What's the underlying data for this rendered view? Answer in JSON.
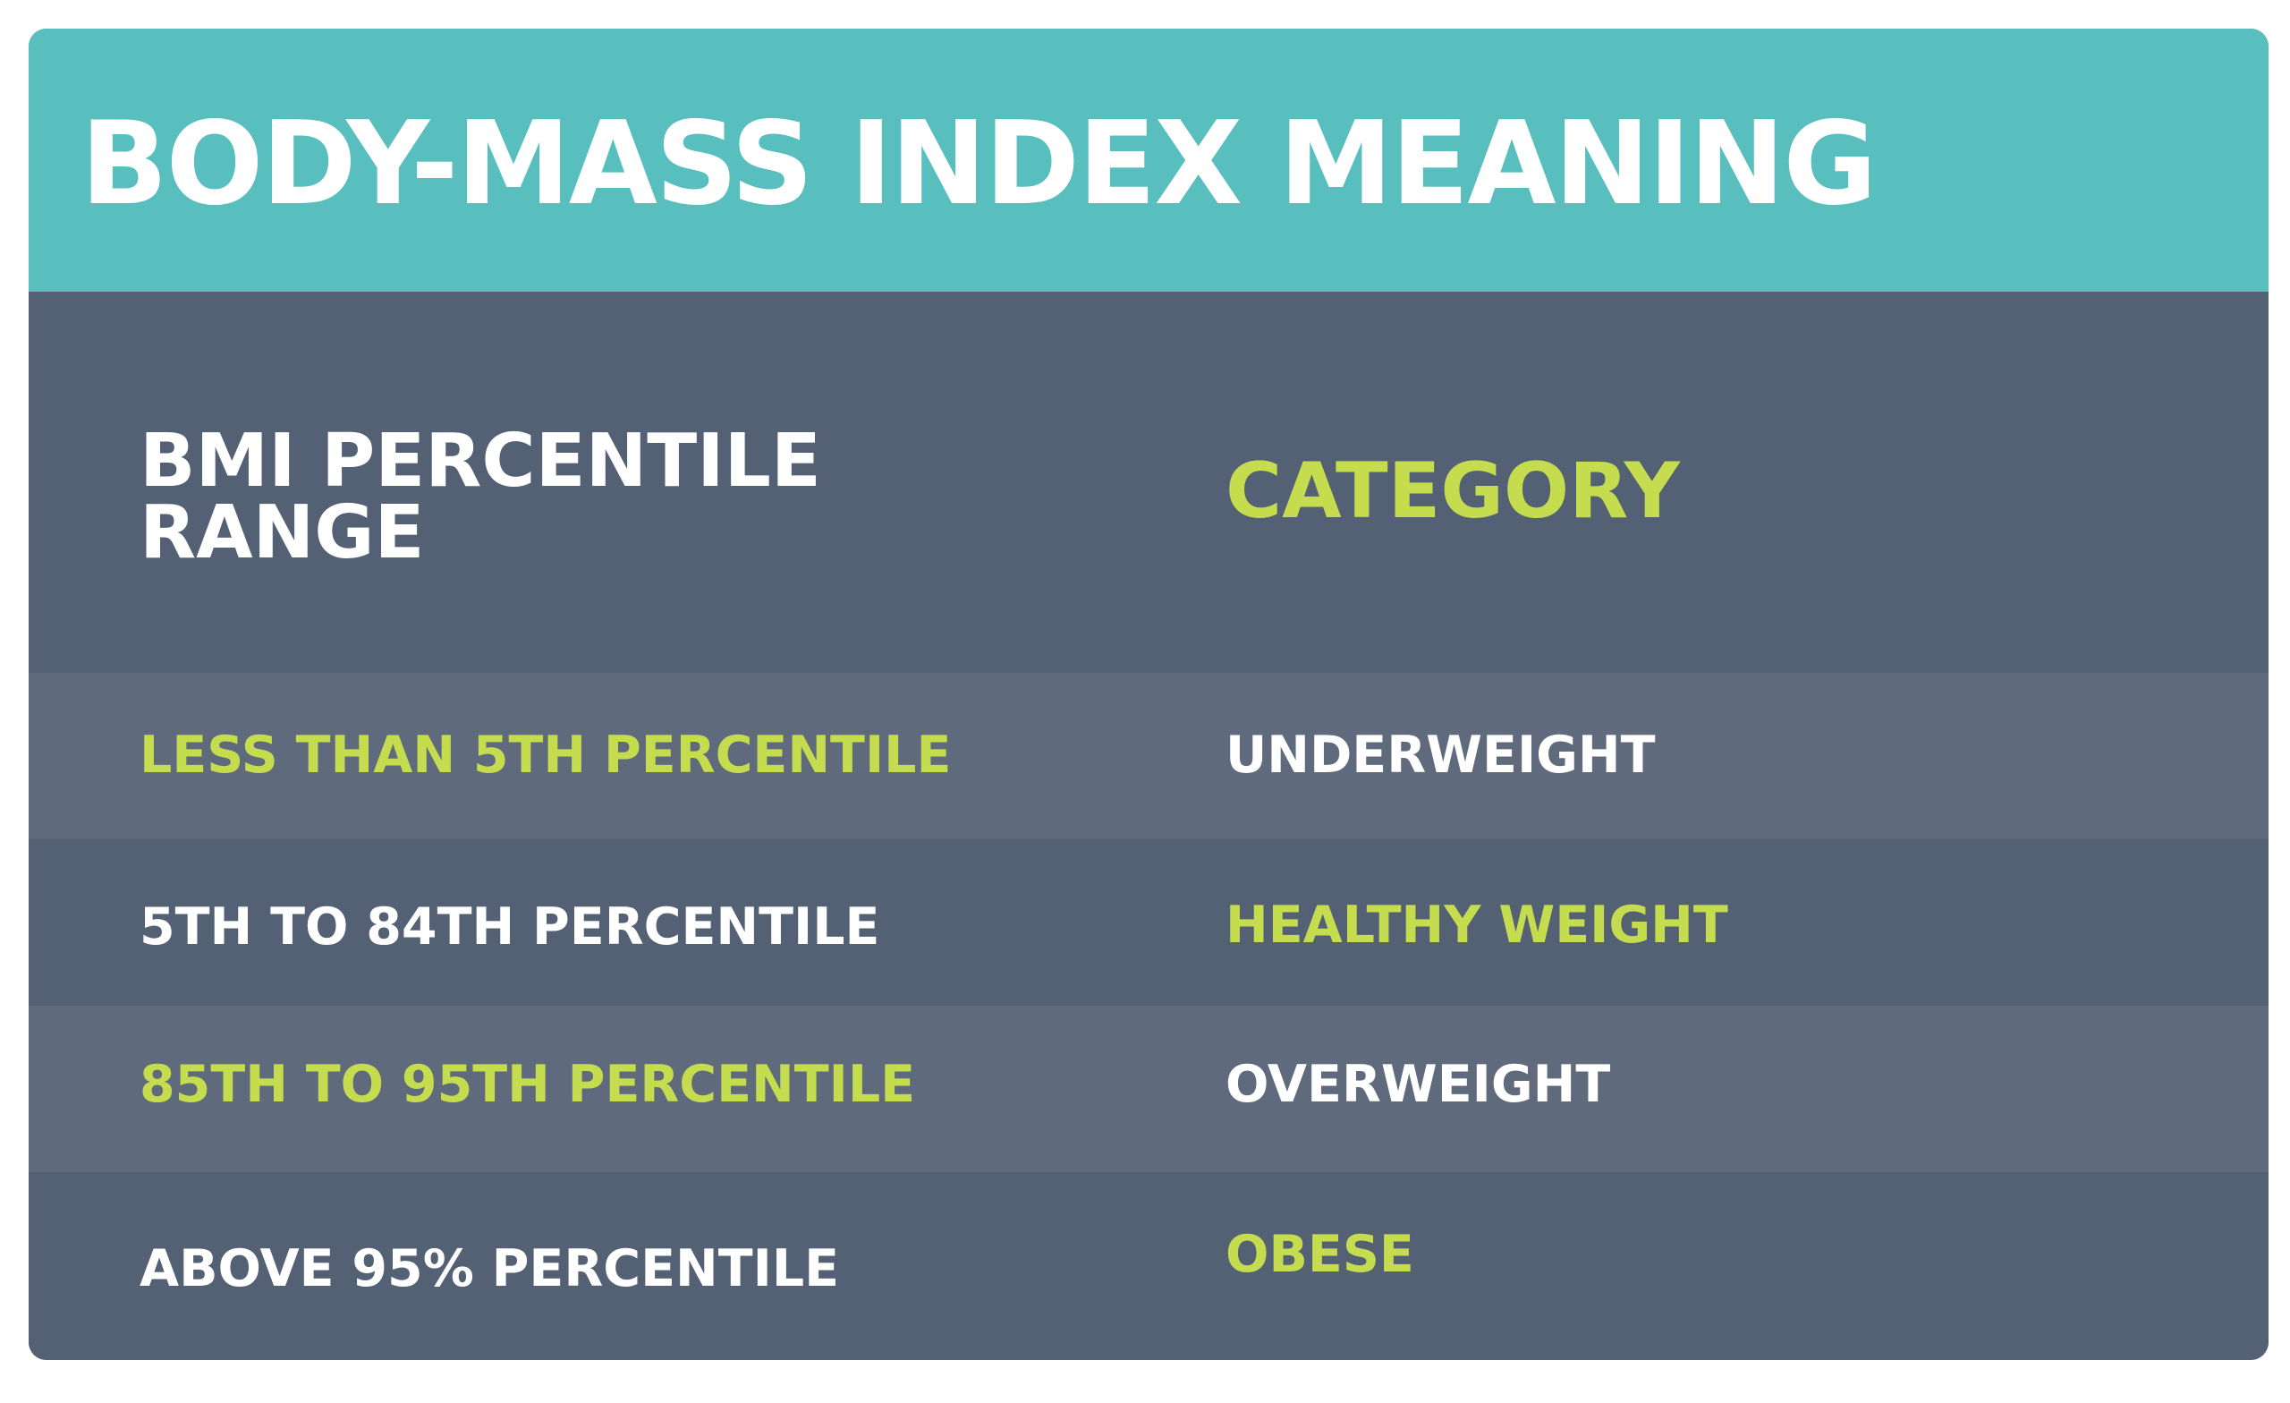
{
  "title": "BODY-MASS INDEX MEANING",
  "header": {
    "range_line1": "BMI PERCENTILE",
    "range_line2": "RANGE",
    "category": "CATEGORY"
  },
  "rows": [
    {
      "range": "LESS THAN 5TH PERCENTILE",
      "category": "UNDERWEIGHT"
    },
    {
      "range": "5TH TO 84TH PERCENTILE",
      "category": "HEALTHY WEIGHT"
    },
    {
      "range": "85TH TO 95TH PERCENTILE",
      "category": "OVERWEIGHT"
    },
    {
      "range": "ABOVE 95% PERCENTILE",
      "category": "OBESE"
    }
  ],
  "colors": {
    "title_bar": "#58bfbe",
    "table_dark": "#546073",
    "table_light": "#5f6a7d",
    "accent_green": "#c5dc4f",
    "text_white": "#ffffff"
  }
}
